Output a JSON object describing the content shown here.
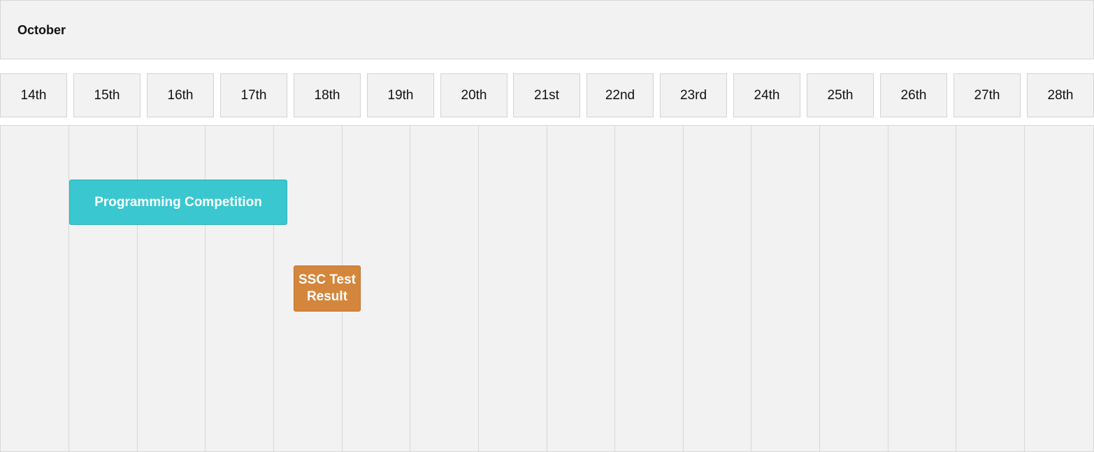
{
  "calendar": {
    "month": "October",
    "days": [
      "14th",
      "15th",
      "16th",
      "17th",
      "18th",
      "19th",
      "20th",
      "21st",
      "22nd",
      "23rd",
      "24th",
      "25th",
      "26th",
      "27th",
      "28th"
    ]
  },
  "events": [
    {
      "title": "Programming Competition",
      "color": "#3ac7cf",
      "start": "15th",
      "end": "17th"
    },
    {
      "title": "SSC Test Result",
      "color": "#d4863c",
      "start": "18th",
      "end": "18th"
    }
  ]
}
